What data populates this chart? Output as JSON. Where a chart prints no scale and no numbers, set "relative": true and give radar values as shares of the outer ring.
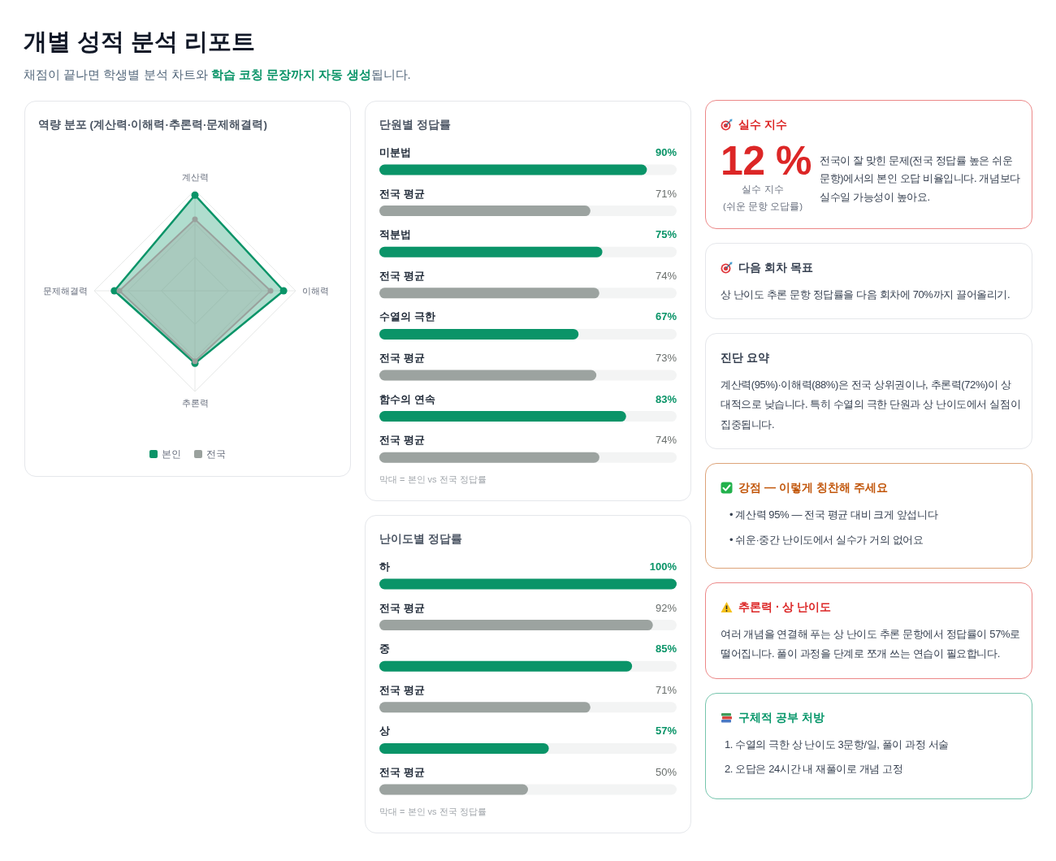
{
  "chart_data": [
    {
      "type": "other",
      "title": "개별 성적 분석 리포트",
      "color": "#0a9468",
      "annotations": [
        "채점이 끝나면 학생별 분석 차트와 ",
        "학습 코칭 문장까지 자동 생성",
        "됩니다."
      ]
    },
    {
      "type": "radar",
      "title": "역량 분포 (계산력·이해력·추론력·문제해결력)",
      "categories": [
        "계산력",
        "이해력",
        "추론력",
        "문제해결력"
      ],
      "relative": true,
      "series": [
        {
          "name": "본인",
          "color": "#0a9468",
          "values": [
            0.95,
            0.88,
            0.72,
            0.8
          ]
        },
        {
          "name": "전국",
          "color": "#9aa19d",
          "values": [
            0.71,
            0.75,
            0.7,
            0.75
          ]
        }
      ],
      "grid": true,
      "marker": "circle",
      "legend": "bottom"
    },
    {
      "type": "bar",
      "orientation": "horizontal",
      "title": "단원별 정답률",
      "categories": [
        "미분법",
        "전국 평균",
        "적분법",
        "전국 평균",
        "수열의 극한",
        "전국 평균",
        "함수의 연속",
        "전국 평균"
      ],
      "values": [
        90,
        71,
        75,
        74,
        67,
        73,
        83,
        74
      ],
      "colors": [
        "#0a9468",
        "#9ca3a0",
        "#0a9468",
        "#9ca3a0",
        "#0a9468",
        "#9ca3a0",
        "#0a9468",
        "#9ca3a0"
      ],
      "value_labels": [
        "90%",
        "71%",
        "75%",
        "74%",
        "67%",
        "73%",
        "83%",
        "74%"
      ],
      "xlim": [
        0,
        100
      ],
      "tick_labels": "y",
      "annotations": [
        "막대 = 본인 vs 전국 정답률"
      ]
    },
    {
      "type": "bar",
      "orientation": "horizontal",
      "title": "난이도별 정답률",
      "categories": [
        "하",
        "전국 평균",
        "중",
        "전국 평균",
        "상",
        "전국 평균"
      ],
      "values": [
        100,
        92,
        85,
        71,
        57,
        50
      ],
      "colors": [
        "#0a9468",
        "#9ca3a0",
        "#0a9468",
        "#9ca3a0",
        "#0a9468",
        "#9ca3a0"
      ],
      "value_labels": [
        "100%",
        "92%",
        "85%",
        "71%",
        "57%",
        "50%"
      ],
      "xlim": [
        0,
        100
      ],
      "tick_labels": "y",
      "annotations": [
        "막대 = 본인 vs 전국 정답률"
      ]
    },
    {
      "type": "other",
      "title": "실수 지수",
      "color": "#dc2626",
      "annotations": [
        "12 %",
        "실수 지수",
        "(쉬운 문항 오답률)",
        "전국이 잘 맞힌 문제(전국 정답률 높은 쉬운 문항)에서의 본인 오답 비율입니다. 개념보다 실수일 가능성이 높아요."
      ]
    },
    {
      "type": "other",
      "title": "다음 회차 목표",
      "annotations": [
        "상 난이도 추론 문항 정답률을 다음 회차에 70%까지 끌어올리기."
      ]
    },
    {
      "type": "other",
      "title": "진단 요약",
      "annotations": [
        "계산력(95%)·이해력(88%)은 전국 상위권이나, 추론력(72%)이 상대적으로 낮습니다. 특히 수열의 극한 단원과 상 난이도에서 실점이 집중됩니다."
      ]
    },
    {
      "type": "other",
      "title": "강점 — 이렇게 칭찬해 주세요",
      "color": "#c2570c",
      "annotations": [
        "• 계산력 95% — 전국 평균 대비 크게 앞섭니다",
        "• 쉬운·중간 난이도에서 실수가 거의 없어요"
      ]
    },
    {
      "type": "other",
      "title": "추론력 · 상 난이도",
      "color": "#dc2626",
      "annotations": [
        "여러 개념을 연결해 푸는 상 난이도 추론 문항에서 정답률이 57%로 떨어집니다. 풀이 과정을 단계로 쪼개 쓰는 연습이 필요합니다."
      ]
    },
    {
      "type": "other",
      "title": "구체적 공부 처방",
      "color": "#059669",
      "annotations": [
        "1. 수열의 극한 상 난이도 3문항/일, 풀이 과정 서술",
        "2. 오답은 24시간 내 재풀이로 개념 고정"
      ]
    }
  ]
}
